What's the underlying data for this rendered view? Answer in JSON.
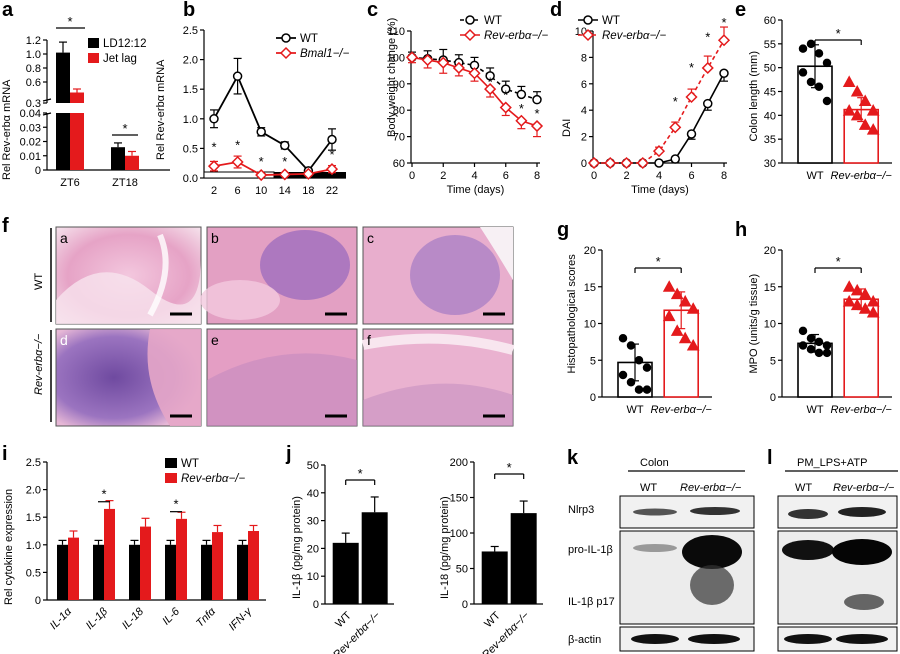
{
  "panel_labels": [
    "a",
    "b",
    "c",
    "d",
    "e",
    "f",
    "g",
    "h",
    "i",
    "j",
    "k",
    "l"
  ],
  "colors": {
    "wt": "#000000",
    "ko": "#e41a1c",
    "he_pink": "#e9a6c8",
    "he_purple": "#8a5fb0"
  },
  "chart_data": [
    {
      "id": "a",
      "type": "bar",
      "ylabel": "Rel Rev-erbα mRNA",
      "categories": [
        "ZT6",
        "ZT18"
      ],
      "series": [
        {
          "name": "LD12:12",
          "values": [
            1.02,
            0.016
          ],
          "errors": [
            0.15,
            0.003
          ]
        },
        {
          "name": "Jet lag",
          "values": [
            0.45,
            0.01
          ],
          "errors": [
            0.05,
            0.003
          ]
        }
      ],
      "yticks_top": [
        "1.2",
        "1.0",
        "0.8",
        "0.6",
        "0.3"
      ],
      "yticks_bottom": [
        "0.04",
        "0.03",
        "0.02",
        "0.01",
        "0"
      ],
      "significance": [
        "*",
        "*"
      ]
    },
    {
      "id": "b",
      "type": "line",
      "ylabel": "Rel Rev-erbα mRNA",
      "x": [
        2,
        6,
        10,
        14,
        18,
        22
      ],
      "xticks": [
        "2",
        "6",
        "10",
        "14",
        "18",
        "22"
      ],
      "yticks": [
        "0.0",
        "0.5",
        "1.0",
        "1.5",
        "2.0",
        "2.5"
      ],
      "ylim": [
        0,
        2.5
      ],
      "series": [
        {
          "name": "WT",
          "values": [
            1.0,
            1.72,
            0.78,
            0.55,
            0.12,
            0.65
          ],
          "errors": [
            0.15,
            0.3,
            0.07,
            0.06,
            0.03,
            0.18
          ]
        },
        {
          "name": "Bmal1−/−",
          "values": [
            0.2,
            0.27,
            0.05,
            0.06,
            0.07,
            0.15
          ],
          "errors": [
            0.08,
            0.1,
            0.02,
            0.03,
            0.03,
            0.06
          ]
        }
      ],
      "significance": [
        "*",
        "*",
        "*",
        "*",
        "*"
      ]
    },
    {
      "id": "c",
      "type": "line",
      "xlabel": "Time (days)",
      "ylabel": "Body weight change (%)",
      "xticks": [
        "0",
        "2",
        "4",
        "6",
        "8"
      ],
      "yticks": [
        "60",
        "70",
        "80",
        "90",
        "100",
        "110"
      ],
      "ylim": [
        60,
        110
      ],
      "x": [
        0,
        1,
        2,
        3,
        4,
        5,
        6,
        7,
        8
      ],
      "series": [
        {
          "name": "WT",
          "values": [
            100,
            99.5,
            99,
            98,
            97,
            93,
            88,
            86,
            84
          ],
          "errors": [
            2,
            3,
            4,
            3,
            3,
            3,
            3,
            3,
            3
          ]
        },
        {
          "name": "Rev-erbα−/−",
          "values": [
            100,
            99,
            98,
            96,
            94,
            88,
            81,
            76,
            74
          ],
          "errors": [
            2,
            3,
            4,
            3,
            3,
            3,
            3,
            3,
            4
          ]
        }
      ],
      "significance": [
        "*",
        "*",
        "*",
        "*"
      ]
    },
    {
      "id": "d",
      "type": "line",
      "xlabel": "Time (days)",
      "ylabel": "DAI",
      "xticks": [
        "0",
        "2",
        "4",
        "6",
        "8"
      ],
      "yticks": [
        "0",
        "2",
        "4",
        "6",
        "8",
        "10"
      ],
      "ylim": [
        0,
        10
      ],
      "x": [
        0,
        1,
        2,
        3,
        4,
        5,
        6,
        7,
        8
      ],
      "series": [
        {
          "name": "WT",
          "values": [
            0,
            0,
            0,
            0,
            0,
            0.3,
            2.2,
            4.5,
            6.8
          ],
          "errors": [
            0,
            0,
            0,
            0,
            0,
            0.2,
            0.4,
            0.5,
            0.6
          ]
        },
        {
          "name": "Rev-erbα−/−",
          "values": [
            0,
            0,
            0,
            0,
            0.9,
            2.7,
            5.0,
            7.2,
            9.3
          ],
          "errors": [
            0,
            0,
            0,
            0,
            0.3,
            0.4,
            0.6,
            0.9,
            1.0
          ]
        }
      ],
      "significance": [
        "*",
        "*",
        "*",
        "*"
      ]
    },
    {
      "id": "e",
      "type": "bar",
      "ylabel": "Colon length (mm)",
      "categories": [
        "WT",
        "Rev-erbα−/−"
      ],
      "yticks": [
        "30",
        "35",
        "40",
        "45",
        "50",
        "55",
        "60"
      ],
      "ylim": [
        30,
        60
      ],
      "values": [
        50.3,
        41.2
      ],
      "errors": [
        4.5,
        2.5
      ],
      "points": [
        [
          54,
          55,
          53,
          51,
          49,
          47,
          46,
          43
        ],
        [
          47,
          45,
          43,
          41,
          41,
          40,
          38,
          37
        ]
      ],
      "significance": [
        "*"
      ]
    },
    {
      "id": "g",
      "type": "bar",
      "ylabel": "Histopathological scores",
      "categories": [
        "WT",
        "Rev-erbα−/−"
      ],
      "yticks": [
        "0",
        "5",
        "10",
        "15",
        "20"
      ],
      "ylim": [
        0,
        20
      ],
      "values": [
        4.7,
        11.8
      ],
      "errors": [
        2.5,
        2.5
      ],
      "points": [
        [
          8,
          7,
          5,
          4,
          3,
          2,
          1,
          1
        ],
        [
          15,
          14,
          13,
          12,
          11,
          9,
          8,
          7
        ]
      ],
      "significance": [
        "*"
      ]
    },
    {
      "id": "h",
      "type": "bar",
      "ylabel": "MPO (units/g tissue)",
      "categories": [
        "WT",
        "Rev-erbα−/−"
      ],
      "yticks": [
        "0",
        "5",
        "10",
        "15",
        "20"
      ],
      "ylim": [
        0,
        20
      ],
      "values": [
        7.3,
        13.3
      ],
      "errors": [
        1.2,
        1.4
      ],
      "points": [
        [
          9,
          8,
          7.5,
          7,
          7,
          6.5,
          6,
          6
        ],
        [
          15,
          14.5,
          14,
          13,
          13,
          12.5,
          12,
          11.5
        ]
      ],
      "significance": [
        "*"
      ]
    },
    {
      "id": "i",
      "type": "bar",
      "ylabel": "Rel cytokine expression",
      "categories": [
        "IL-1α",
        "IL-1β",
        "IL-18",
        "IL-6",
        "Tnfα",
        "IFN-γ"
      ],
      "yticks": [
        "0",
        "0.5",
        "1.0",
        "1.5",
        "2.0",
        "2.5"
      ],
      "ylim": [
        0,
        2.5
      ],
      "series": [
        {
          "name": "WT",
          "values": [
            1,
            1,
            1,
            1,
            1,
            1
          ],
          "errors": [
            0.08,
            0.08,
            0.08,
            0.08,
            0.08,
            0.08
          ]
        },
        {
          "name": "Rev-erbα−/−",
          "values": [
            1.13,
            1.65,
            1.33,
            1.47,
            1.23,
            1.25
          ],
          "errors": [
            0.12,
            0.15,
            0.15,
            0.12,
            0.12,
            0.1
          ]
        }
      ],
      "significance": [
        "*",
        "*"
      ]
    },
    {
      "id": "j1",
      "type": "bar",
      "ylabel": "IL-1β (pg/mg protein)",
      "categories": [
        "WT",
        "Rev-erbα−/−"
      ],
      "yticks": [
        "0",
        "10",
        "20",
        "30",
        "40",
        "50"
      ],
      "ylim": [
        0,
        50
      ],
      "values": [
        22,
        33
      ],
      "errors": [
        3.5,
        5.5
      ],
      "significance": [
        "*"
      ]
    },
    {
      "id": "j2",
      "type": "bar",
      "ylabel": "IL-18 (pg/mg protein)",
      "categories": [
        "WT",
        "Rev-erbα−/−"
      ],
      "yticks": [
        "0",
        "50",
        "100",
        "150",
        "200"
      ],
      "ylim": [
        0,
        200
      ],
      "values": [
        74,
        128
      ],
      "errors": [
        7,
        17
      ],
      "significance": [
        "*"
      ]
    }
  ],
  "panel_f": {
    "row_labels": [
      "WT",
      "Rev-erbα−/−"
    ],
    "tiles": [
      "a",
      "b",
      "c",
      "d",
      "e",
      "f"
    ]
  },
  "panel_k": {
    "title": "Colon",
    "cols": [
      "WT",
      "Rev-erbα−/−"
    ],
    "rows": [
      "Nlrp3",
      "pro-IL-1β",
      "IL-1β p17",
      "β-actin"
    ]
  },
  "panel_l": {
    "title": "PM_LPS+ATP",
    "cols": [
      "WT",
      "Rev-erbα−/−"
    ]
  }
}
